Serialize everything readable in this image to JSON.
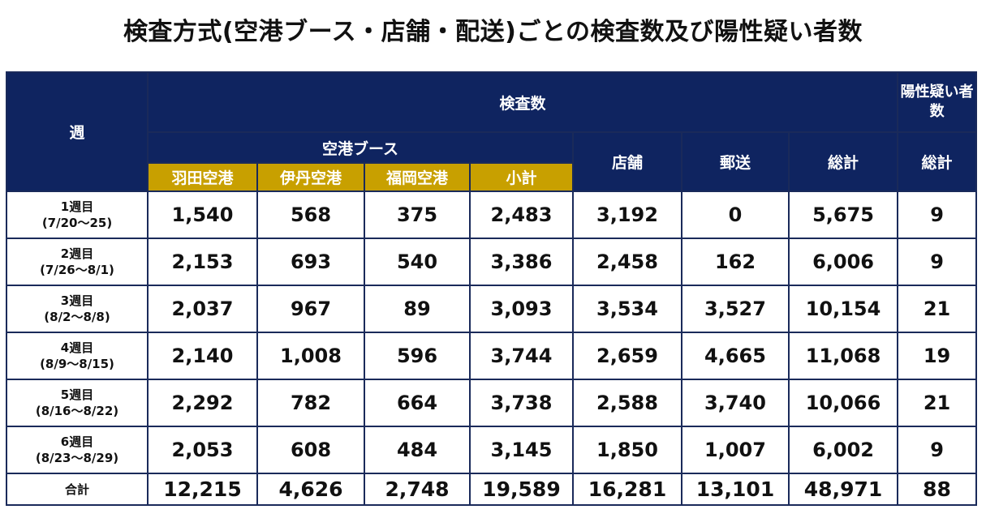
{
  "title": "検査方式(空港ブース・店舗・配送)ごとの検査数及び陽性疑い者数",
  "header": {
    "week": "週",
    "tests": "検査数",
    "positive_suspected": "陽性疑い者数",
    "airport_booth": "空港ブース",
    "haneda": "羽田空港",
    "itami": "伊丹空港",
    "fukuoka": "福岡空港",
    "subtotal": "小計",
    "store": "店舗",
    "mail": "郵送",
    "total": "総計",
    "positive_total": "総計"
  },
  "rows": [
    {
      "week": "1週目",
      "range": "(7/20～25)",
      "haneda": "1,540",
      "itami": "568",
      "fukuoka": "375",
      "subtotal": "2,483",
      "store": "3,192",
      "mail": "0",
      "total": "5,675",
      "positive": "9"
    },
    {
      "week": "2週目",
      "range": "(7/26～8/1)",
      "haneda": "2,153",
      "itami": "693",
      "fukuoka": "540",
      "subtotal": "3,386",
      "store": "2,458",
      "mail": "162",
      "total": "6,006",
      "positive": "9"
    },
    {
      "week": "3週目",
      "range": "(8/2～8/8)",
      "haneda": "2,037",
      "itami": "967",
      "fukuoka": "89",
      "subtotal": "3,093",
      "store": "3,534",
      "mail": "3,527",
      "total": "10,154",
      "positive": "21"
    },
    {
      "week": "4週目",
      "range": "(8/9～8/15)",
      "haneda": "2,140",
      "itami": "1,008",
      "fukuoka": "596",
      "subtotal": "3,744",
      "store": "2,659",
      "mail": "4,665",
      "total": "11,068",
      "positive": "19"
    },
    {
      "week": "5週目",
      "range": "(8/16～8/22)",
      "haneda": "2,292",
      "itami": "782",
      "fukuoka": "664",
      "subtotal": "3,738",
      "store": "2,588",
      "mail": "3,740",
      "total": "10,066",
      "positive": "21"
    },
    {
      "week": "6週目",
      "range": "(8/23～8/29)",
      "haneda": "2,053",
      "itami": "608",
      "fukuoka": "484",
      "subtotal": "3,145",
      "store": "1,850",
      "mail": "1,007",
      "total": "6,002",
      "positive": "9"
    }
  ],
  "totals": {
    "label": "合計",
    "haneda": "12,215",
    "itami": "4,626",
    "fukuoka": "2,748",
    "subtotal": "19,589",
    "store": "16,281",
    "mail": "13,101",
    "total": "48,971",
    "positive": "88"
  },
  "colors": {
    "header_navy": "#0f2460",
    "header_gold": "#c8a000",
    "border": "#1a2a5a"
  }
}
